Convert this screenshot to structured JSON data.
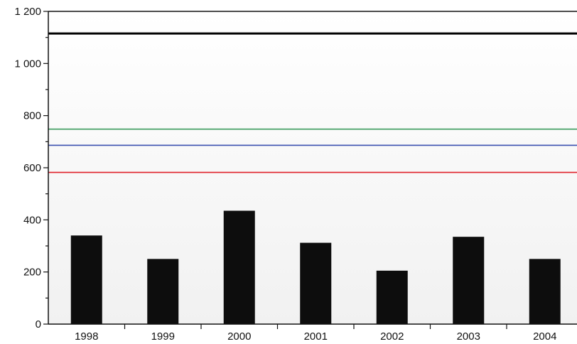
{
  "chart_data": {
    "type": "bar",
    "categories": [
      "1998",
      "1999",
      "2000",
      "2001",
      "2002",
      "2003",
      "2004"
    ],
    "series": [
      {
        "values": [
          340,
          250,
          435,
          312,
          205,
          335,
          250
        ]
      }
    ],
    "reference_lines": [
      {
        "value": 1115,
        "color": "#000000"
      },
      {
        "value": 748,
        "color": "#3a9a5b"
      },
      {
        "value": 686,
        "color": "#3a4fb0"
      },
      {
        "value": 582,
        "color": "#e0202a"
      }
    ],
    "y_ticks": [
      {
        "value": 0,
        "label": "0"
      },
      {
        "value": 200,
        "label": "200"
      },
      {
        "value": 400,
        "label": "400"
      },
      {
        "value": 600,
        "label": "600"
      },
      {
        "value": 800,
        "label": "800"
      },
      {
        "value": 1000,
        "label": "1 000"
      },
      {
        "value": 1200,
        "label": "1 200"
      }
    ],
    "ylim": [
      0,
      1200
    ],
    "bar_color": "#0d0d0d",
    "grid": false,
    "legend": "none",
    "title": "",
    "xlabel": "",
    "ylabel": ""
  }
}
